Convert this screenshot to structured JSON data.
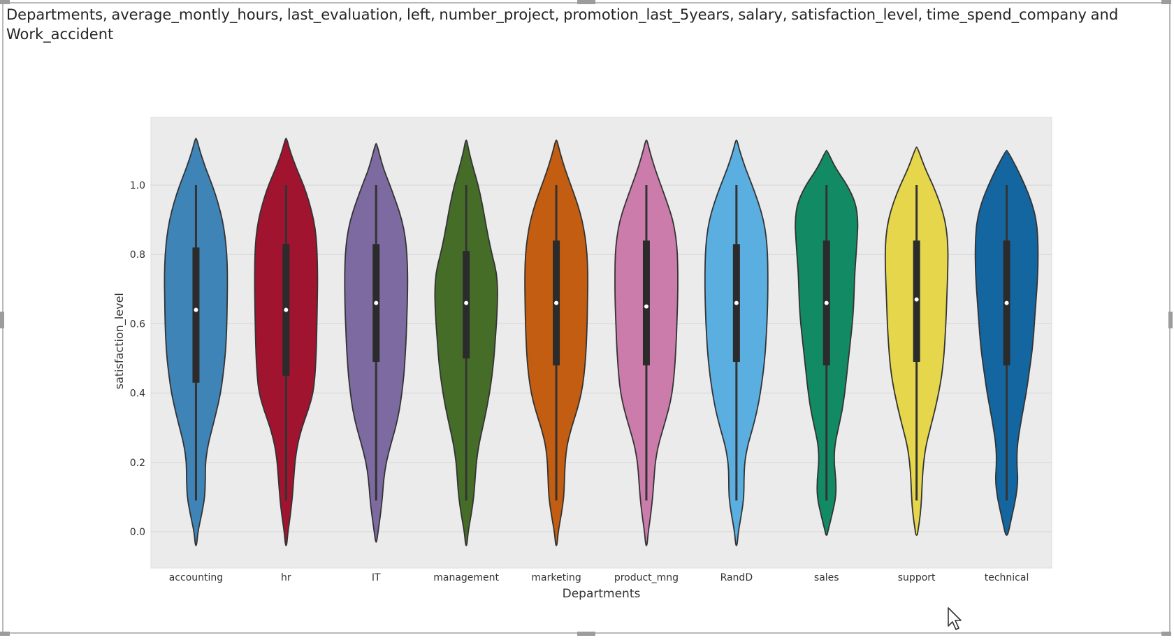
{
  "visual": {
    "title": "Departments, average_montly_hours, last_evaluation, left, number_project, promotion_last_5years, salary, satisfaction_level, time_spend_company and Work_accident"
  },
  "chart_data": {
    "type": "violin",
    "xlabel": "Departments",
    "ylabel": "satisfaction_level",
    "ylim": [
      -0.1,
      1.18
    ],
    "yticks": [
      "0.0",
      "0.2",
      "0.4",
      "0.6",
      "0.8",
      "1.0"
    ],
    "grid": true,
    "background": "#ebebeb",
    "ygrid": [
      0.0,
      0.1,
      0.2,
      0.3,
      0.4,
      0.5,
      0.6,
      0.7,
      0.8,
      0.9,
      1.0,
      1.1,
      1.2,
      1.3,
      1.4,
      1.5,
      1.6,
      1.7,
      1.8,
      1.9,
      2.0,
      2.1,
      2.2,
      2.3
    ],
    "categories": [
      "accounting",
      "hr",
      "IT",
      "management",
      "marketing",
      "product_mng",
      "RandD",
      "sales",
      "support",
      "technical"
    ],
    "colors": [
      "#3f84b6",
      "#a0142f",
      "#7d6aa0",
      "#456d28",
      "#c25d11",
      "#cb7cab",
      "#5aaee0",
      "#128a64",
      "#e6d64c",
      "#1466a0"
    ],
    "median": [
      0.64,
      0.64,
      0.66,
      0.66,
      0.66,
      0.65,
      0.66,
      0.66,
      0.67,
      0.66
    ],
    "q1": [
      0.43,
      0.45,
      0.49,
      0.5,
      0.48,
      0.48,
      0.49,
      0.48,
      0.49,
      0.48
    ],
    "q3": [
      0.82,
      0.83,
      0.83,
      0.81,
      0.84,
      0.84,
      0.83,
      0.84,
      0.84,
      0.84
    ],
    "whisker_low": [
      0.09,
      0.09,
      0.09,
      0.09,
      0.09,
      0.09,
      0.09,
      0.09,
      0.09,
      0.09
    ],
    "whisker_high": [
      1.0,
      1.0,
      1.0,
      1.0,
      1.0,
      1.0,
      1.0,
      1.0,
      1.0,
      1.0
    ],
    "density": [
      [
        [
          -0.04,
          0.02
        ],
        [
          0.0,
          0.06
        ],
        [
          0.05,
          0.18
        ],
        [
          0.1,
          0.28
        ],
        [
          0.15,
          0.3
        ],
        [
          0.2,
          0.3
        ],
        [
          0.25,
          0.38
        ],
        [
          0.3,
          0.52
        ],
        [
          0.35,
          0.66
        ],
        [
          0.4,
          0.78
        ],
        [
          0.45,
          0.86
        ],
        [
          0.5,
          0.92
        ],
        [
          0.55,
          0.96
        ],
        [
          0.6,
          0.98
        ],
        [
          0.65,
          0.99
        ],
        [
          0.7,
          1.0
        ],
        [
          0.75,
          1.0
        ],
        [
          0.8,
          0.98
        ],
        [
          0.85,
          0.93
        ],
        [
          0.9,
          0.84
        ],
        [
          0.95,
          0.7
        ],
        [
          1.0,
          0.52
        ],
        [
          1.05,
          0.3
        ],
        [
          1.1,
          0.12
        ],
        [
          1.135,
          0.02
        ]
      ],
      [
        [
          -0.04,
          0.02
        ],
        [
          0.0,
          0.06
        ],
        [
          0.05,
          0.14
        ],
        [
          0.1,
          0.2
        ],
        [
          0.15,
          0.24
        ],
        [
          0.2,
          0.28
        ],
        [
          0.25,
          0.36
        ],
        [
          0.3,
          0.5
        ],
        [
          0.35,
          0.7
        ],
        [
          0.4,
          0.86
        ],
        [
          0.45,
          0.92
        ],
        [
          0.5,
          0.95
        ],
        [
          0.55,
          0.97
        ],
        [
          0.6,
          0.98
        ],
        [
          0.65,
          0.99
        ],
        [
          0.7,
          1.0
        ],
        [
          0.75,
          1.0
        ],
        [
          0.8,
          0.99
        ],
        [
          0.85,
          0.96
        ],
        [
          0.9,
          0.88
        ],
        [
          0.95,
          0.74
        ],
        [
          1.0,
          0.56
        ],
        [
          1.05,
          0.32
        ],
        [
          1.1,
          0.12
        ],
        [
          1.135,
          0.02
        ]
      ],
      [
        [
          -0.03,
          0.02
        ],
        [
          0.0,
          0.06
        ],
        [
          0.05,
          0.14
        ],
        [
          0.1,
          0.2
        ],
        [
          0.15,
          0.24
        ],
        [
          0.2,
          0.32
        ],
        [
          0.25,
          0.46
        ],
        [
          0.3,
          0.62
        ],
        [
          0.35,
          0.74
        ],
        [
          0.4,
          0.82
        ],
        [
          0.45,
          0.88
        ],
        [
          0.5,
          0.92
        ],
        [
          0.55,
          0.95
        ],
        [
          0.6,
          0.97
        ],
        [
          0.65,
          0.99
        ],
        [
          0.7,
          1.0
        ],
        [
          0.75,
          1.0
        ],
        [
          0.8,
          0.98
        ],
        [
          0.85,
          0.93
        ],
        [
          0.9,
          0.82
        ],
        [
          0.95,
          0.64
        ],
        [
          1.0,
          0.44
        ],
        [
          1.05,
          0.22
        ],
        [
          1.12,
          0.02
        ]
      ],
      [
        [
          -0.04,
          0.02
        ],
        [
          0.0,
          0.06
        ],
        [
          0.05,
          0.16
        ],
        [
          0.1,
          0.24
        ],
        [
          0.15,
          0.28
        ],
        [
          0.2,
          0.32
        ],
        [
          0.25,
          0.4
        ],
        [
          0.3,
          0.52
        ],
        [
          0.35,
          0.64
        ],
        [
          0.4,
          0.74
        ],
        [
          0.45,
          0.82
        ],
        [
          0.5,
          0.88
        ],
        [
          0.55,
          0.92
        ],
        [
          0.6,
          0.96
        ],
        [
          0.65,
          0.99
        ],
        [
          0.7,
          1.0
        ],
        [
          0.75,
          0.96
        ],
        [
          0.8,
          0.82
        ],
        [
          0.85,
          0.7
        ],
        [
          0.9,
          0.6
        ],
        [
          0.95,
          0.5
        ],
        [
          1.0,
          0.38
        ],
        [
          1.05,
          0.22
        ],
        [
          1.1,
          0.08
        ],
        [
          1.13,
          0.02
        ]
      ],
      [
        [
          -0.04,
          0.02
        ],
        [
          0.0,
          0.06
        ],
        [
          0.05,
          0.16
        ],
        [
          0.1,
          0.24
        ],
        [
          0.15,
          0.26
        ],
        [
          0.2,
          0.28
        ],
        [
          0.25,
          0.34
        ],
        [
          0.3,
          0.48
        ],
        [
          0.35,
          0.66
        ],
        [
          0.4,
          0.8
        ],
        [
          0.45,
          0.88
        ],
        [
          0.5,
          0.93
        ],
        [
          0.55,
          0.96
        ],
        [
          0.6,
          0.98
        ],
        [
          0.65,
          0.99
        ],
        [
          0.7,
          1.0
        ],
        [
          0.75,
          1.0
        ],
        [
          0.8,
          0.98
        ],
        [
          0.85,
          0.92
        ],
        [
          0.9,
          0.82
        ],
        [
          0.95,
          0.66
        ],
        [
          1.0,
          0.46
        ],
        [
          1.05,
          0.26
        ],
        [
          1.1,
          0.1
        ],
        [
          1.13,
          0.02
        ]
      ],
      [
        [
          -0.04,
          0.02
        ],
        [
          0.0,
          0.06
        ],
        [
          0.05,
          0.14
        ],
        [
          0.1,
          0.2
        ],
        [
          0.15,
          0.24
        ],
        [
          0.2,
          0.28
        ],
        [
          0.25,
          0.38
        ],
        [
          0.3,
          0.54
        ],
        [
          0.35,
          0.7
        ],
        [
          0.4,
          0.82
        ],
        [
          0.45,
          0.88
        ],
        [
          0.5,
          0.92
        ],
        [
          0.55,
          0.95
        ],
        [
          0.6,
          0.97
        ],
        [
          0.65,
          0.99
        ],
        [
          0.7,
          1.0
        ],
        [
          0.75,
          1.0
        ],
        [
          0.8,
          0.99
        ],
        [
          0.85,
          0.94
        ],
        [
          0.9,
          0.84
        ],
        [
          0.95,
          0.66
        ],
        [
          1.0,
          0.46
        ],
        [
          1.05,
          0.26
        ],
        [
          1.1,
          0.1
        ],
        [
          1.13,
          0.02
        ]
      ],
      [
        [
          -0.04,
          0.02
        ],
        [
          0.0,
          0.06
        ],
        [
          0.05,
          0.16
        ],
        [
          0.1,
          0.24
        ],
        [
          0.15,
          0.24
        ],
        [
          0.2,
          0.26
        ],
        [
          0.25,
          0.36
        ],
        [
          0.3,
          0.52
        ],
        [
          0.35,
          0.66
        ],
        [
          0.4,
          0.76
        ],
        [
          0.45,
          0.84
        ],
        [
          0.5,
          0.9
        ],
        [
          0.55,
          0.94
        ],
        [
          0.6,
          0.97
        ],
        [
          0.65,
          0.99
        ],
        [
          0.7,
          1.0
        ],
        [
          0.75,
          1.0
        ],
        [
          0.8,
          0.99
        ],
        [
          0.85,
          0.95
        ],
        [
          0.9,
          0.86
        ],
        [
          0.95,
          0.7
        ],
        [
          1.0,
          0.5
        ],
        [
          1.05,
          0.28
        ],
        [
          1.1,
          0.1
        ],
        [
          1.13,
          0.02
        ]
      ],
      [
        [
          -0.01,
          0.02
        ],
        [
          0.0,
          0.04
        ],
        [
          0.05,
          0.18
        ],
        [
          0.1,
          0.3
        ],
        [
          0.15,
          0.3
        ],
        [
          0.2,
          0.24
        ],
        [
          0.25,
          0.26
        ],
        [
          0.3,
          0.38
        ],
        [
          0.35,
          0.5
        ],
        [
          0.4,
          0.58
        ],
        [
          0.45,
          0.64
        ],
        [
          0.5,
          0.7
        ],
        [
          0.55,
          0.76
        ],
        [
          0.6,
          0.82
        ],
        [
          0.65,
          0.86
        ],
        [
          0.7,
          0.88
        ],
        [
          0.75,
          0.9
        ],
        [
          0.8,
          0.94
        ],
        [
          0.85,
          0.98
        ],
        [
          0.9,
          1.0
        ],
        [
          0.95,
          0.92
        ],
        [
          1.0,
          0.66
        ],
        [
          1.05,
          0.28
        ],
        [
          1.1,
          0.02
        ]
      ],
      [
        [
          -0.01,
          0.02
        ],
        [
          0.0,
          0.04
        ],
        [
          0.05,
          0.12
        ],
        [
          0.1,
          0.16
        ],
        [
          0.15,
          0.18
        ],
        [
          0.2,
          0.22
        ],
        [
          0.25,
          0.3
        ],
        [
          0.3,
          0.44
        ],
        [
          0.35,
          0.58
        ],
        [
          0.4,
          0.7
        ],
        [
          0.45,
          0.8
        ],
        [
          0.5,
          0.86
        ],
        [
          0.55,
          0.9
        ],
        [
          0.6,
          0.93
        ],
        [
          0.65,
          0.95
        ],
        [
          0.7,
          0.97
        ],
        [
          0.75,
          0.99
        ],
        [
          0.8,
          1.0
        ],
        [
          0.85,
          0.98
        ],
        [
          0.9,
          0.9
        ],
        [
          0.95,
          0.74
        ],
        [
          1.0,
          0.52
        ],
        [
          1.05,
          0.26
        ],
        [
          1.11,
          0.02
        ]
      ],
      [
        [
          -0.01,
          0.02
        ],
        [
          0.0,
          0.06
        ],
        [
          0.05,
          0.18
        ],
        [
          0.1,
          0.3
        ],
        [
          0.15,
          0.36
        ],
        [
          0.2,
          0.32
        ],
        [
          0.25,
          0.34
        ],
        [
          0.3,
          0.42
        ],
        [
          0.35,
          0.52
        ],
        [
          0.4,
          0.62
        ],
        [
          0.45,
          0.7
        ],
        [
          0.5,
          0.78
        ],
        [
          0.55,
          0.84
        ],
        [
          0.6,
          0.88
        ],
        [
          0.65,
          0.92
        ],
        [
          0.7,
          0.96
        ],
        [
          0.75,
          0.99
        ],
        [
          0.8,
          1.0
        ],
        [
          0.85,
          0.99
        ],
        [
          0.9,
          0.94
        ],
        [
          0.95,
          0.8
        ],
        [
          1.0,
          0.58
        ],
        [
          1.05,
          0.32
        ],
        [
          1.1,
          0.02
        ]
      ]
    ]
  }
}
